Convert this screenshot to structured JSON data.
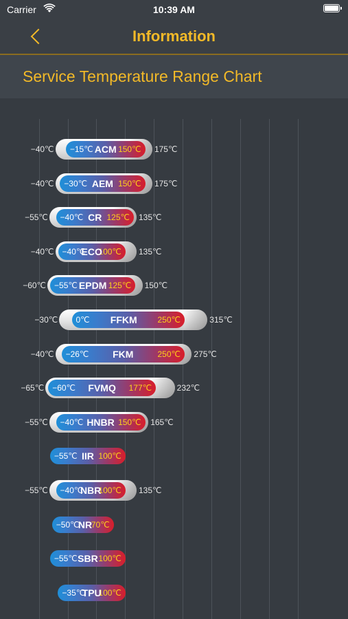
{
  "status_bar": {
    "carrier": "Carrier",
    "time": "10:39 AM"
  },
  "nav": {
    "title": "Information"
  },
  "section": {
    "title": "Service Temperature Range Chart"
  },
  "chart_data": {
    "type": "range-bar",
    "title": "Service Temperature Range Chart",
    "unit": "℃",
    "materials": [
      {
        "name": "ACM",
        "min": "−40℃",
        "low": "−15℃",
        "high": "150℃",
        "max": "175℃",
        "v": [
          -40,
          -15,
          150,
          175
        ]
      },
      {
        "name": "AEM",
        "min": "−40℃",
        "low": "−30℃",
        "high": "150℃",
        "max": "175℃",
        "v": [
          -40,
          -30,
          150,
          175
        ]
      },
      {
        "name": "CR",
        "min": "−55℃",
        "low": "−40℃",
        "high": "125℃",
        "max": "135℃",
        "v": [
          -55,
          -40,
          125,
          135
        ]
      },
      {
        "name": "ECO",
        "min": "−40℃",
        "low": "−40℃",
        "high": "100℃",
        "max": "135℃",
        "v": [
          -40,
          -40,
          100,
          135
        ]
      },
      {
        "name": "EPDM",
        "min": "−60℃",
        "low": "−55℃",
        "high": "125℃",
        "max": "150℃",
        "v": [
          -60,
          -55,
          125,
          150
        ]
      },
      {
        "name": "FFKM",
        "min": "−30℃",
        "low": "0℃",
        "high": "250℃",
        "max": "315℃",
        "v": [
          -30,
          0,
          250,
          315
        ]
      },
      {
        "name": "FKM",
        "min": "−40℃",
        "low": "−26℃",
        "high": "250℃",
        "max": "275℃",
        "v": [
          -40,
          -26,
          250,
          275
        ]
      },
      {
        "name": "FVMQ",
        "min": "−65℃",
        "low": "−60℃",
        "high": "177℃",
        "max": "232℃",
        "v": [
          -65,
          -60,
          177,
          232
        ]
      },
      {
        "name": "HNBR",
        "min": "−55℃",
        "low": "−40℃",
        "high": "150℃",
        "max": "165℃",
        "v": [
          -55,
          -40,
          150,
          165
        ]
      },
      {
        "name": "IIR",
        "min": "",
        "low": "−55℃",
        "high": "100℃",
        "max": "",
        "v": [
          -55,
          -55,
          100,
          100
        ]
      },
      {
        "name": "NBR",
        "min": "−55℃",
        "low": "−40℃",
        "high": "100℃",
        "max": "135℃",
        "v": [
          -55,
          -40,
          100,
          135
        ]
      },
      {
        "name": "NR",
        "min": "",
        "low": "−50℃",
        "high": "70℃",
        "max": "",
        "v": [
          -50,
          -50,
          70,
          70
        ]
      },
      {
        "name": "SBR",
        "min": "",
        "low": "−55℃",
        "high": "100℃",
        "max": "",
        "v": [
          -55,
          -55,
          100,
          100
        ]
      },
      {
        "name": "TPU",
        "min": "",
        "low": "−35℃",
        "high": "100℃",
        "max": "",
        "v": [
          -35,
          -35,
          100,
          100
        ]
      }
    ],
    "grid": true
  }
}
